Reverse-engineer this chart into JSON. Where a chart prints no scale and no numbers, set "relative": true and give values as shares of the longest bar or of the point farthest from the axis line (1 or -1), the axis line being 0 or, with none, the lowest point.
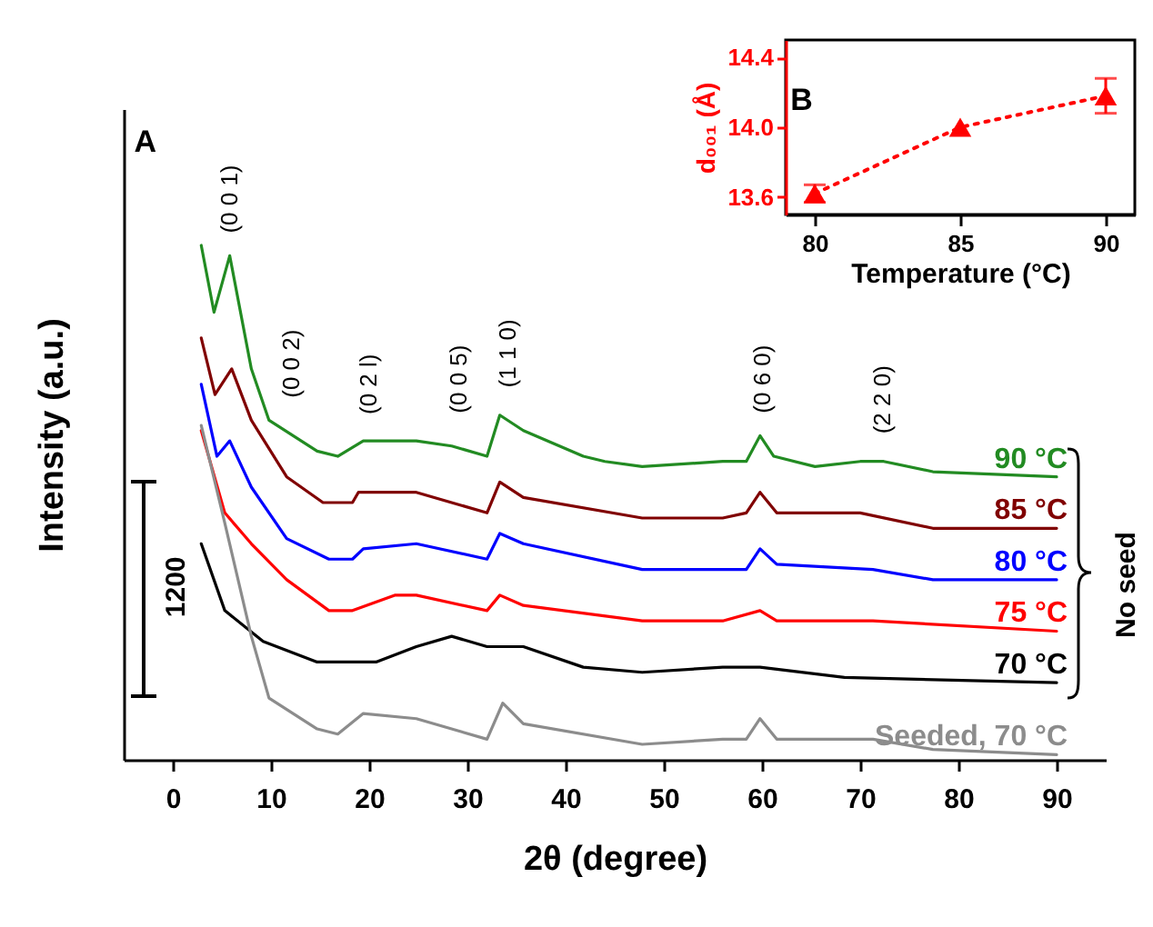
{
  "chart_data": [
    {
      "type": "line",
      "xlabel": "2θ (degree)",
      "ylabel": "Intensity (a.u.)",
      "relative": true,
      "xlim": [
        -5,
        95
      ],
      "xticks": [
        0,
        10,
        20,
        30,
        40,
        50,
        60,
        70,
        80,
        90
      ],
      "series": [
        {
          "name": "90 °C",
          "color": "#228b22",
          "x": [
            2.9,
            4.2,
            5.8,
            8,
            9.8,
            14.7,
            16.8,
            19.4,
            24.8,
            28.4,
            32,
            33.3,
            35.7,
            41.8,
            44,
            47.8,
            56,
            58.4,
            59.8,
            61.2,
            65.4,
            70,
            72.4,
            77.4,
            90
          ],
          "values": [
            1.0,
            0.87,
            0.98,
            0.76,
            0.66,
            0.6,
            0.59,
            0.62,
            0.62,
            0.61,
            0.59,
            0.67,
            0.64,
            0.59,
            0.58,
            0.57,
            0.58,
            0.58,
            0.63,
            0.59,
            0.57,
            0.58,
            0.58,
            0.56,
            0.55
          ]
        },
        {
          "name": "85 °C",
          "color": "#800000",
          "x": [
            2.9,
            4.3,
            6,
            8,
            11.6,
            15.3,
            18.3,
            18.9,
            24.8,
            32,
            33.3,
            35.7,
            47.8,
            56,
            58.4,
            59.8,
            61.5,
            70,
            77.4,
            90
          ],
          "values": [
            0.82,
            0.71,
            0.76,
            0.66,
            0.55,
            0.5,
            0.5,
            0.52,
            0.52,
            0.48,
            0.54,
            0.51,
            0.47,
            0.47,
            0.48,
            0.52,
            0.48,
            0.48,
            0.45,
            0.45
          ]
        },
        {
          "name": "80 °C",
          "color": "#0000ff",
          "x": [
            2.9,
            4.5,
            5.8,
            8,
            11.6,
            15.9,
            18.3,
            19.4,
            24.8,
            32,
            33.3,
            35.7,
            47.8,
            56,
            58.4,
            59.8,
            61.5,
            71.3,
            77.4,
            90
          ],
          "values": [
            0.73,
            0.59,
            0.62,
            0.53,
            0.43,
            0.39,
            0.39,
            0.41,
            0.42,
            0.39,
            0.44,
            0.42,
            0.37,
            0.37,
            0.37,
            0.41,
            0.38,
            0.37,
            0.35,
            0.35
          ]
        },
        {
          "name": "75 °C",
          "color": "#ff0000",
          "x": [
            2.9,
            5.3,
            8,
            11.6,
            15.9,
            18.3,
            22.6,
            24.8,
            32,
            33.3,
            35.7,
            47.8,
            56,
            59.8,
            61.5,
            71.3,
            90
          ],
          "values": [
            0.64,
            0.48,
            0.42,
            0.35,
            0.29,
            0.29,
            0.32,
            0.32,
            0.29,
            0.32,
            0.3,
            0.27,
            0.27,
            0.29,
            0.27,
            0.27,
            0.25
          ]
        },
        {
          "name": "70 °C",
          "color": "#000000",
          "x": [
            2.9,
            5.3,
            9.2,
            14.7,
            20.7,
            24.8,
            28.4,
            32,
            35.7,
            41.8,
            47.8,
            56,
            59.8,
            68.4,
            90
          ],
          "values": [
            0.42,
            0.29,
            0.23,
            0.19,
            0.19,
            0.22,
            0.24,
            0.22,
            0.22,
            0.18,
            0.17,
            0.18,
            0.18,
            0.16,
            0.15
          ]
        },
        {
          "name": "Seeded, 70 °C",
          "color": "#8c8c8c",
          "x": [
            2.9,
            5.3,
            8,
            9.8,
            14.7,
            16.8,
            19.4,
            24.8,
            32,
            33.6,
            35.7,
            47.8,
            56,
            58.4,
            59.8,
            61.5,
            71.3,
            77.4,
            90
          ],
          "values": [
            0.65,
            0.46,
            0.24,
            0.12,
            0.06,
            0.05,
            0.09,
            0.08,
            0.04,
            0.11,
            0.07,
            0.03,
            0.04,
            0.04,
            0.08,
            0.04,
            0.04,
            0.02,
            0.01
          ]
        }
      ],
      "annotations": [
        "A",
        "1200",
        "No seed",
        "(0 0 1)",
        "(0 0 2)",
        "(0 2 l)",
        "(0 0 5)",
        "(1 1 0)",
        "(0 6 0)",
        "(2 2 0)"
      ]
    },
    {
      "type": "line",
      "xlabel": "Temperature (°C)",
      "ylabel": "d₀₀₁ (Å)",
      "xlim": [
        79,
        91
      ],
      "xticks": [
        80,
        85,
        90
      ],
      "ylim": [
        13.5,
        14.5
      ],
      "yticks": [
        13.6,
        {
          "value": 14,
          "label": "14.0"
        },
        14.4
      ],
      "marker": "triangle",
      "line_style": "dotted",
      "series": [
        {
          "color": "#ff0000",
          "x": [
            80,
            85,
            90
          ],
          "values": [
            13.62,
            14.0,
            14.18
          ],
          "errors": [
            0.05,
            null,
            0.1
          ]
        }
      ],
      "annotations": [
        "B"
      ]
    }
  ]
}
